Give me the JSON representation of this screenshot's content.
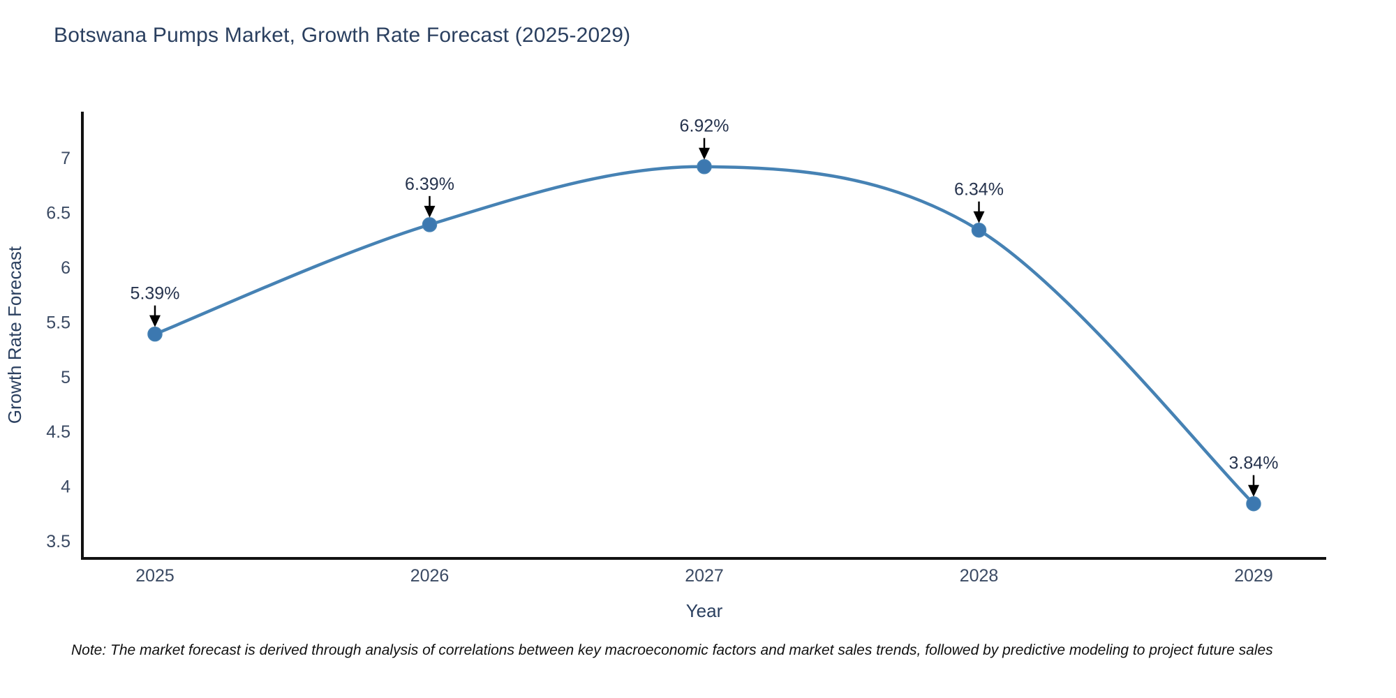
{
  "title": "Botswana Pumps Market, Growth Rate Forecast (2025-2029)",
  "note": "Note: The market forecast is derived through analysis of correlations between key macroeconomic factors and market sales trends, followed by predictive modeling to project future sales",
  "chart_data": {
    "type": "line",
    "line_shape": "spline",
    "x": [
      2025,
      2026,
      2027,
      2028,
      2029
    ],
    "y": [
      5.39,
      6.39,
      6.92,
      6.34,
      3.84
    ],
    "point_labels": [
      "5.39%",
      "6.39%",
      "6.92%",
      "6.34%",
      "3.84%"
    ],
    "xticklabels": [
      "2025",
      "2026",
      "2027",
      "2028",
      "2029"
    ],
    "yticks": [
      3.5,
      4,
      4.5,
      5,
      5.5,
      6,
      6.5,
      7
    ],
    "title": "Botswana Pumps Market, Growth Rate Forecast (2025-2029)",
    "xlabel": "Year",
    "ylabel": "Growth Rate Forecast",
    "ylim": [
      3.3,
      7.4
    ],
    "grid": false,
    "legend": "none",
    "annotations_have_arrows": true,
    "colors": {
      "line": "#4682b4",
      "marker": "#3c78b0",
      "axis": "#111111",
      "title_text": "#2a3f5f",
      "tick_text": "#3b4a63",
      "axis_title_text": "#2a3f5f",
      "annotation_text": "#26334d",
      "annotation_arrow": "#000000",
      "note_text": "#111111",
      "background": "#ffffff"
    }
  }
}
